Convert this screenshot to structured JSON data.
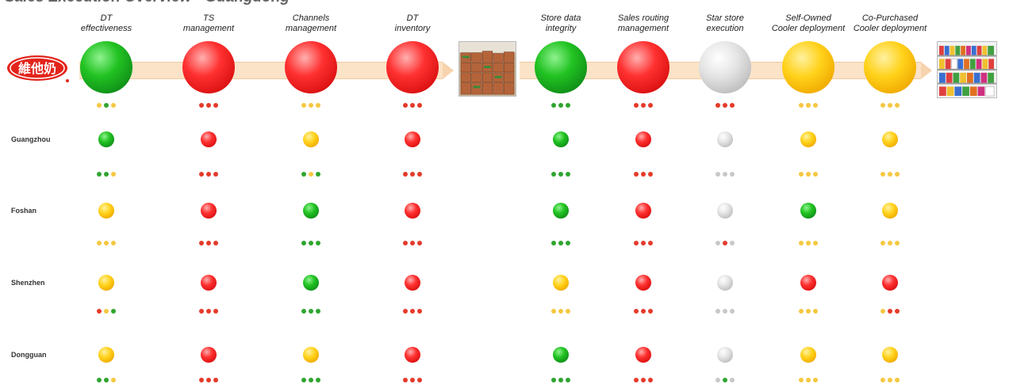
{
  "title": "Sales Execution Overview - Guangdong",
  "logo_alt": "維他奶",
  "colors": {
    "green": "#2fa52f",
    "red": "#e53a2a",
    "amber": "#f5c842",
    "grey": "#c8c8c8",
    "arrow": "#fbe3c8"
  },
  "columns": [
    {
      "label": "DT\neffectiveness",
      "overall": "green",
      "overall_dots": [
        "amber",
        "green",
        "amber"
      ]
    },
    {
      "label": "TS\nmanagement",
      "overall": "red",
      "overall_dots": [
        "red",
        "red",
        "red"
      ]
    },
    {
      "label": "Channels\nmanagement",
      "overall": "red",
      "overall_dots": [
        "amber",
        "amber",
        "amber"
      ]
    },
    {
      "label": "DT\ninventory",
      "overall": "red",
      "overall_dots": [
        "red",
        "red",
        "red"
      ]
    },
    {
      "label": "Store data\nintegrity",
      "overall": "green",
      "overall_dots": [
        "green",
        "green",
        "green"
      ]
    },
    {
      "label": "Sales routing\nmanagement",
      "overall": "red",
      "overall_dots": [
        "red",
        "red",
        "red"
      ]
    },
    {
      "label": "Star store\nexecution",
      "overall": "grey",
      "overall_dots": [
        "red",
        "red",
        "red"
      ]
    },
    {
      "label": "Self-Owned\nCooler deployment",
      "overall": "amber",
      "overall_dots": [
        "amber",
        "amber",
        "amber"
      ]
    },
    {
      "label": "Co-Purchased\nCooler deployment",
      "overall": "amber",
      "overall_dots": [
        "amber",
        "amber",
        "amber"
      ]
    }
  ],
  "cities": [
    {
      "name": "Guangzhou",
      "status": [
        "green",
        "red",
        "amber",
        "red",
        "green",
        "red",
        "grey",
        "amber",
        "amber"
      ],
      "dots": [
        [
          "green",
          "green",
          "amber"
        ],
        [
          "red",
          "red",
          "red"
        ],
        [
          "green",
          "amber",
          "green"
        ],
        [
          "red",
          "red",
          "red"
        ],
        [
          "green",
          "green",
          "green"
        ],
        [
          "red",
          "red",
          "red"
        ],
        [
          "grey",
          "grey",
          "grey"
        ],
        [
          "amber",
          "amber",
          "amber"
        ],
        [
          "amber",
          "amber",
          "amber"
        ]
      ]
    },
    {
      "name": "Foshan",
      "status": [
        "amber",
        "red",
        "green",
        "red",
        "green",
        "red",
        "grey",
        "green",
        "amber"
      ],
      "dots": [
        [
          "amber",
          "amber",
          "amber"
        ],
        [
          "red",
          "red",
          "red"
        ],
        [
          "green",
          "green",
          "green"
        ],
        [
          "red",
          "red",
          "red"
        ],
        [
          "green",
          "green",
          "green"
        ],
        [
          "red",
          "red",
          "red"
        ],
        [
          "grey",
          "red",
          "grey"
        ],
        [
          "amber",
          "amber",
          "amber"
        ],
        [
          "amber",
          "amber",
          "amber"
        ]
      ]
    },
    {
      "name": "Shenzhen",
      "status": [
        "amber",
        "red",
        "green",
        "red",
        "amber",
        "red",
        "grey",
        "red",
        "red"
      ],
      "dots": [
        [
          "red",
          "amber",
          "green"
        ],
        [
          "red",
          "red",
          "red"
        ],
        [
          "green",
          "green",
          "green"
        ],
        [
          "red",
          "red",
          "red"
        ],
        [
          "amber",
          "amber",
          "amber"
        ],
        [
          "red",
          "red",
          "red"
        ],
        [
          "grey",
          "grey",
          "grey"
        ],
        [
          "amber",
          "amber",
          "amber"
        ],
        [
          "amber",
          "red",
          "red"
        ]
      ]
    },
    {
      "name": "Dongguan",
      "status": [
        "amber",
        "red",
        "amber",
        "red",
        "green",
        "red",
        "grey",
        "amber",
        "amber"
      ],
      "dots": [
        [
          "green",
          "green",
          "amber"
        ],
        [
          "red",
          "red",
          "red"
        ],
        [
          "green",
          "green",
          "green"
        ],
        [
          "red",
          "red",
          "red"
        ],
        [
          "green",
          "green",
          "green"
        ],
        [
          "red",
          "red",
          "red"
        ],
        [
          "grey",
          "green",
          "grey"
        ],
        [
          "amber",
          "amber",
          "amber"
        ],
        [
          "amber",
          "amber",
          "amber"
        ]
      ]
    }
  ]
}
